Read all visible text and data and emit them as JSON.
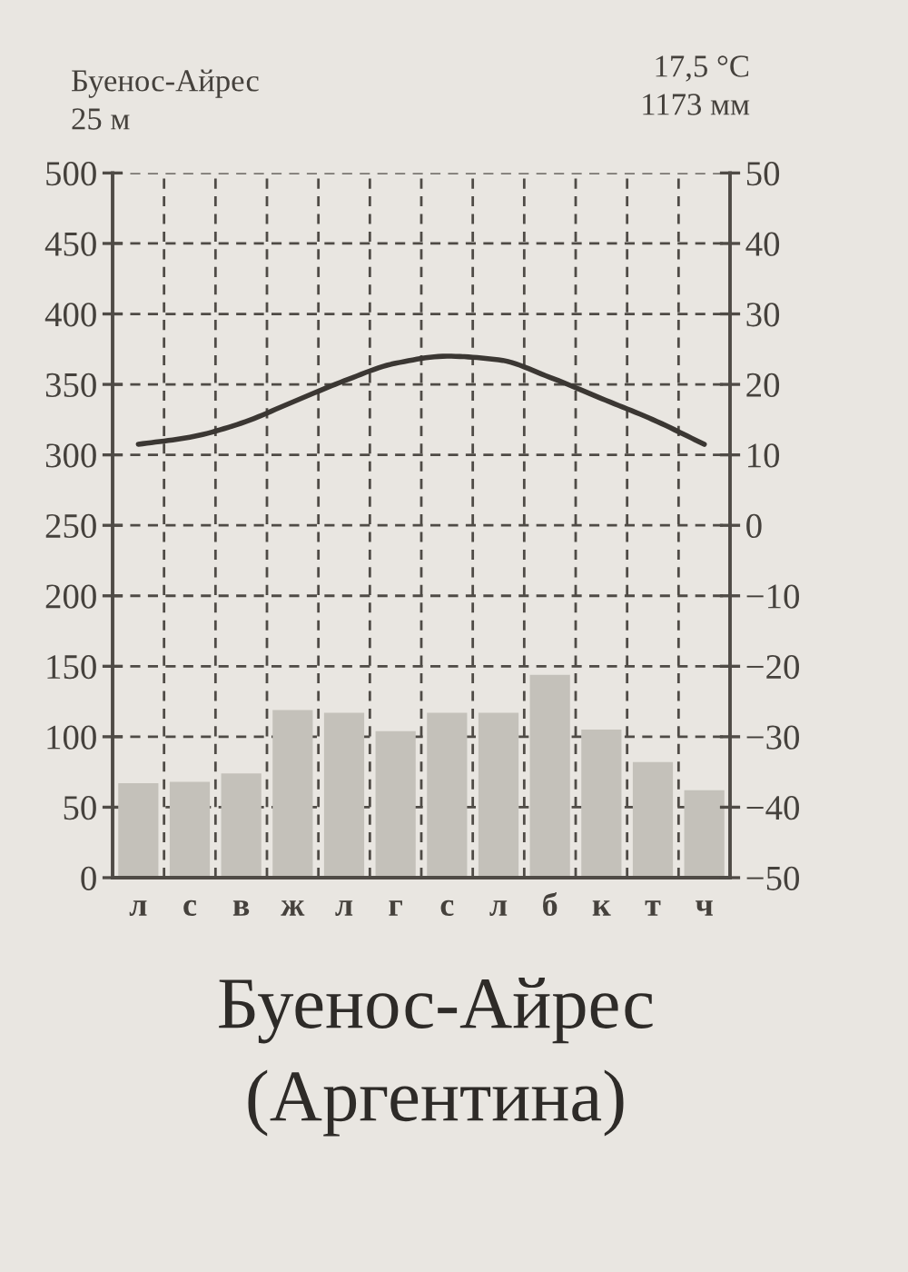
{
  "chart_data": {
    "type": "bar",
    "title": "Буенос-Айрес",
    "subtitle": "(Аргентина)",
    "annotations": [
      "Буенос-Айрес",
      "25 м",
      "17,5 °C",
      "1173 мм"
    ],
    "categories": [
      "л",
      "с",
      "в",
      "ж",
      "л",
      "г",
      "с",
      "л",
      "б",
      "к",
      "т",
      "ч"
    ],
    "series": [
      {
        "color": "#c4c1ba",
        "values": [
          67,
          68,
          74,
          119,
          117,
          104,
          117,
          117,
          144,
          105,
          82,
          62
        ]
      },
      {
        "type": "line",
        "axis": "y2",
        "color": "#3b3733",
        "values": [
          11.5,
          12.5,
          14.5,
          17.5,
          20.5,
          23,
          24,
          23.5,
          21,
          18,
          15,
          11.5
        ]
      }
    ],
    "ylim": [
      0,
      500
    ],
    "yticks": [
      0,
      50,
      100,
      150,
      200,
      250,
      300,
      350,
      400,
      450,
      500
    ],
    "y2lim": [
      -50,
      50
    ],
    "y2ticks": [
      -50,
      -40,
      -30,
      -20,
      -10,
      0,
      10,
      20,
      30,
      40,
      50
    ],
    "grid": true
  }
}
